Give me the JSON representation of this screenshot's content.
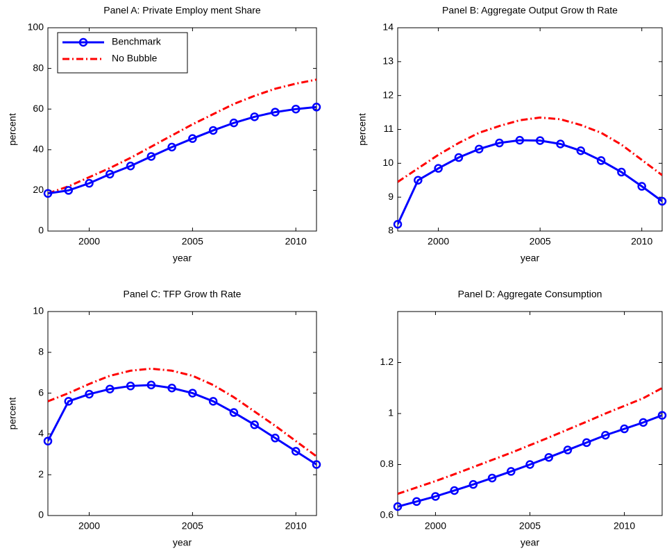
{
  "chart_data": [
    {
      "type": "line",
      "title": "Panel A: Private Employ ment Share",
      "xlabel": "year",
      "ylabel": "percent",
      "x": [
        1998,
        1999,
        2000,
        2001,
        2002,
        2003,
        2004,
        2005,
        2006,
        2007,
        2008,
        2009,
        2010,
        2011
      ],
      "xlim": [
        1998,
        2011
      ],
      "xticks": [
        2000,
        2005,
        2010
      ],
      "ylim": [
        0,
        100
      ],
      "yticks": [
        0,
        20,
        40,
        60,
        80,
        100
      ],
      "legend": "upper left",
      "series": [
        {
          "name": "Benchmark",
          "color": "#0000ff",
          "marker": "o",
          "values": [
            18.5,
            20,
            23.5,
            28,
            32,
            36.7,
            41.3,
            45.5,
            49.5,
            53.2,
            56.2,
            58.5,
            60,
            61
          ]
        },
        {
          "name": "No Bubble",
          "color": "#ff0000",
          "linestyle": "dashdot",
          "values": [
            18.5,
            22,
            26.5,
            31,
            36,
            41.5,
            47,
            52.5,
            57.5,
            62.5,
            66.5,
            70,
            72.5,
            74.5
          ]
        }
      ]
    },
    {
      "type": "line",
      "title": "Panel B: Aggregate Output Grow th Rate",
      "xlabel": "year",
      "ylabel": "percent",
      "x": [
        1998,
        1999,
        2000,
        2001,
        2002,
        2003,
        2004,
        2005,
        2006,
        2007,
        2008,
        2009,
        2010,
        2011
      ],
      "xlim": [
        1998,
        2011
      ],
      "xticks": [
        2000,
        2005,
        2010
      ],
      "ylim": [
        8,
        14
      ],
      "yticks": [
        8,
        9,
        10,
        11,
        12,
        13,
        14
      ],
      "series": [
        {
          "name": "Benchmark",
          "color": "#0000ff",
          "marker": "o",
          "values": [
            8.2,
            9.5,
            9.85,
            10.17,
            10.42,
            10.6,
            10.68,
            10.67,
            10.57,
            10.37,
            10.08,
            9.74,
            9.32,
            8.88
          ]
        },
        {
          "name": "No Bubble",
          "color": "#ff0000",
          "linestyle": "dashdot",
          "values": [
            9.45,
            9.85,
            10.25,
            10.6,
            10.9,
            11.1,
            11.27,
            11.35,
            11.3,
            11.13,
            10.9,
            10.55,
            10.1,
            9.65
          ]
        }
      ]
    },
    {
      "type": "line",
      "title": "Panel C: TFP Grow th Rate",
      "xlabel": "year",
      "ylabel": "percent",
      "x": [
        1998,
        1999,
        2000,
        2001,
        2002,
        2003,
        2004,
        2005,
        2006,
        2007,
        2008,
        2009,
        2010,
        2011
      ],
      "xlim": [
        1998,
        2011
      ],
      "xticks": [
        2000,
        2005,
        2010
      ],
      "ylim": [
        0,
        10
      ],
      "yticks": [
        0,
        2,
        4,
        6,
        8,
        10
      ],
      "series": [
        {
          "name": "Benchmark",
          "color": "#0000ff",
          "marker": "o",
          "values": [
            3.65,
            5.6,
            5.95,
            6.2,
            6.35,
            6.4,
            6.25,
            6.0,
            5.6,
            5.05,
            4.45,
            3.8,
            3.15,
            2.5
          ]
        },
        {
          "name": "No Bubble",
          "color": "#ff0000",
          "linestyle": "dashdot",
          "values": [
            5.6,
            6.0,
            6.45,
            6.85,
            7.1,
            7.2,
            7.1,
            6.85,
            6.4,
            5.8,
            5.1,
            4.4,
            3.65,
            2.9
          ]
        }
      ]
    },
    {
      "type": "line",
      "title": "Panel D: Aggregate Consumption",
      "xlabel": "year",
      "x": [
        1998,
        1999,
        2000,
        2001,
        2002,
        2003,
        2004,
        2005,
        2006,
        2007,
        2008,
        2009,
        2010,
        2011,
        2012
      ],
      "xlim": [
        1998,
        2012
      ],
      "xticks": [
        2000,
        2005,
        2010
      ],
      "ylim": [
        0.6,
        1.4
      ],
      "yticks": [
        0.6,
        0.8,
        1,
        1.2
      ],
      "series": [
        {
          "name": "Benchmark",
          "color": "#0000ff",
          "marker": "o",
          "values": [
            0.635,
            0.655,
            0.675,
            0.698,
            0.722,
            0.747,
            0.773,
            0.8,
            0.828,
            0.857,
            0.886,
            0.915,
            0.94,
            0.965,
            0.993
          ]
        },
        {
          "name": "No Bubble",
          "color": "#ff0000",
          "linestyle": "dashdot",
          "values": [
            0.685,
            0.71,
            0.735,
            0.762,
            0.79,
            0.818,
            0.846,
            0.876,
            0.906,
            0.937,
            0.968,
            1.0,
            1.03,
            1.06,
            1.1
          ]
        }
      ]
    }
  ]
}
